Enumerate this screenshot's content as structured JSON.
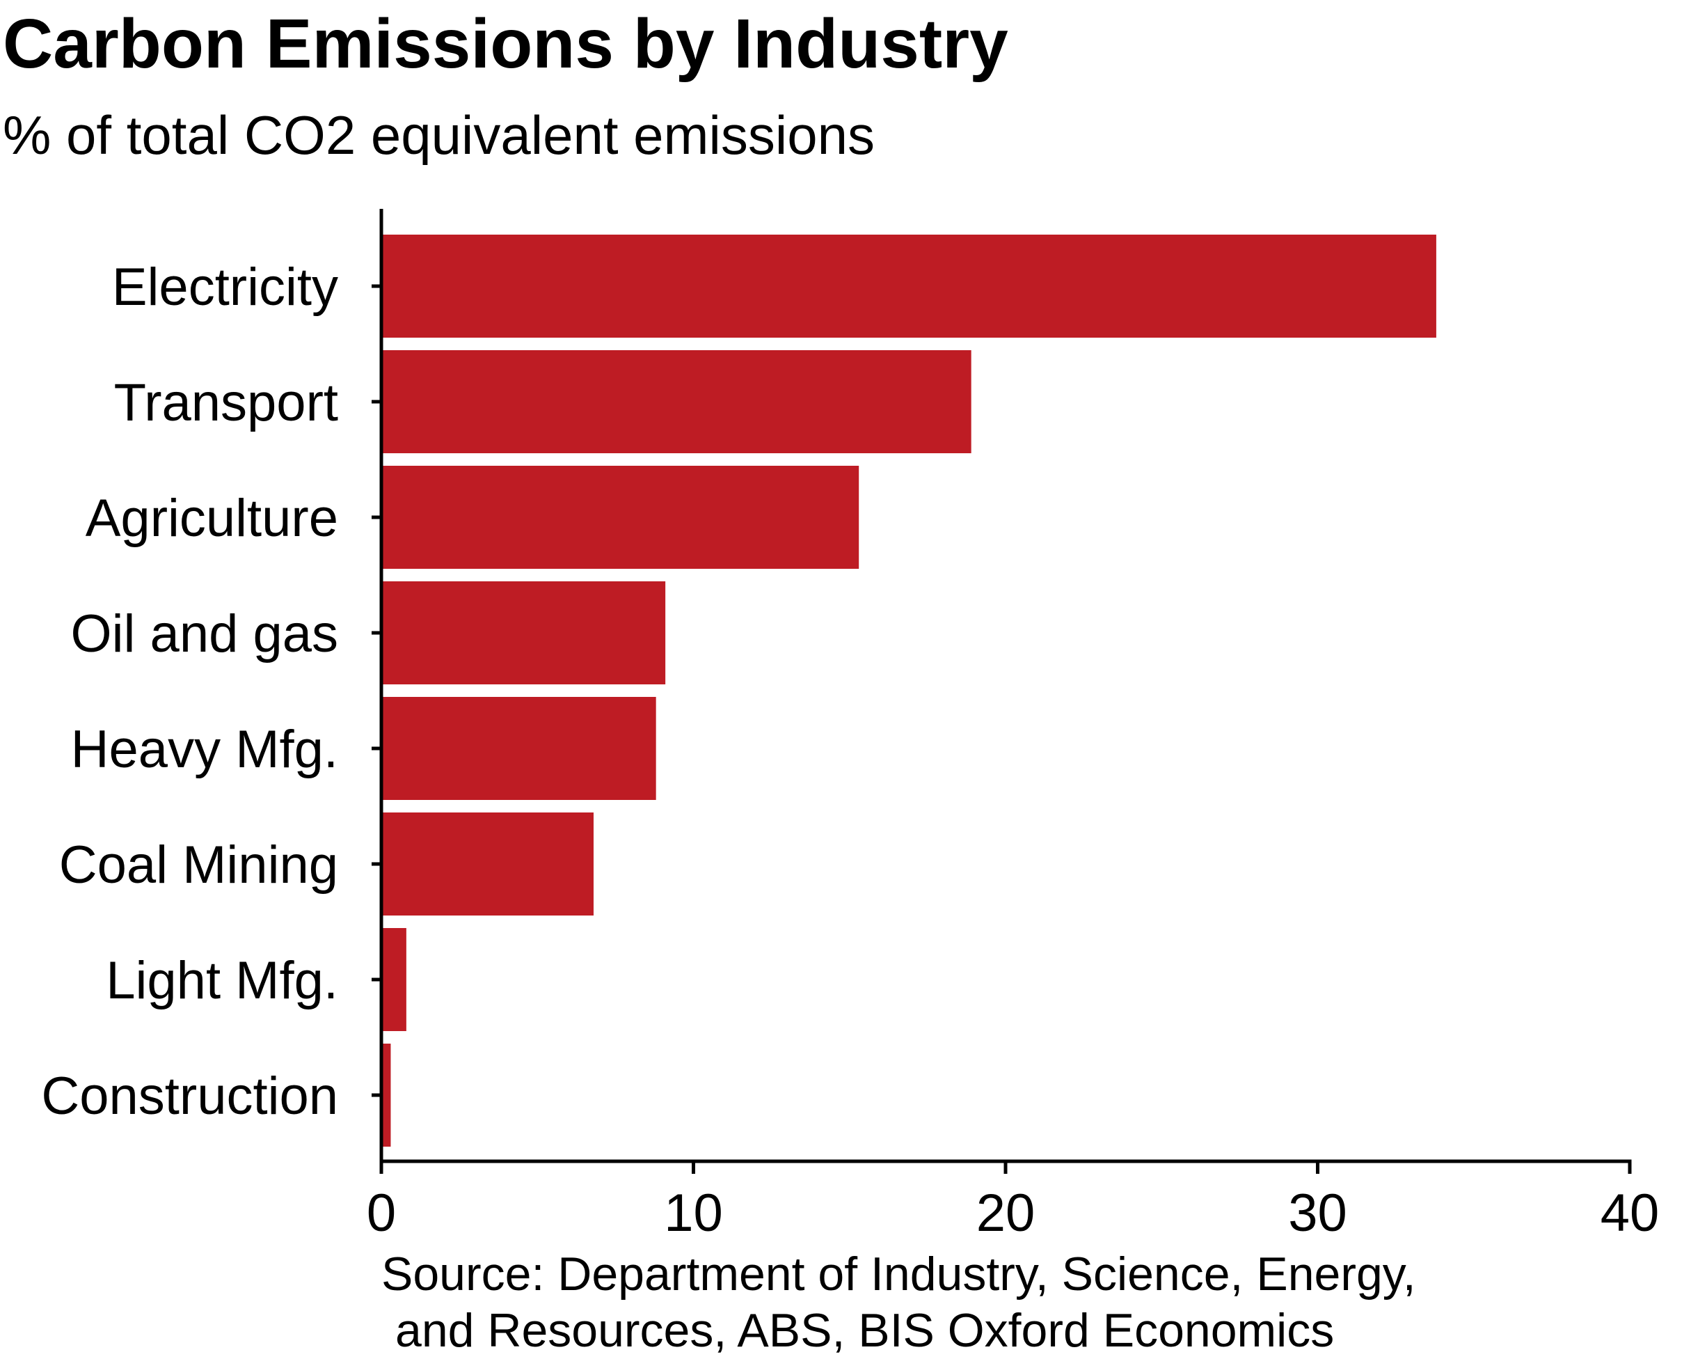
{
  "chart_data": {
    "type": "bar",
    "orientation": "horizontal",
    "title": "Carbon Emissions by Industry",
    "subtitle": "% of total CO2 equivalent emissions",
    "categories": [
      "Electricity",
      "Transport",
      "Agriculture",
      "Oil and gas",
      "Heavy Mfg.",
      "Coal Mining",
      "Light Mfg.",
      "Construction"
    ],
    "values": [
      33.8,
      18.9,
      15.3,
      9.1,
      8.8,
      6.8,
      0.8,
      0.3
    ],
    "xlabel": "",
    "ylabel": "",
    "xlim": [
      0,
      40
    ],
    "xticks": [
      0,
      10,
      20,
      30,
      40
    ],
    "bar_color": "#be1c24",
    "grid": false,
    "legend": "none",
    "source": [
      "Source: Department of Industry, Science, Energy,",
      "and Resources, ABS, BIS Oxford Economics"
    ]
  }
}
